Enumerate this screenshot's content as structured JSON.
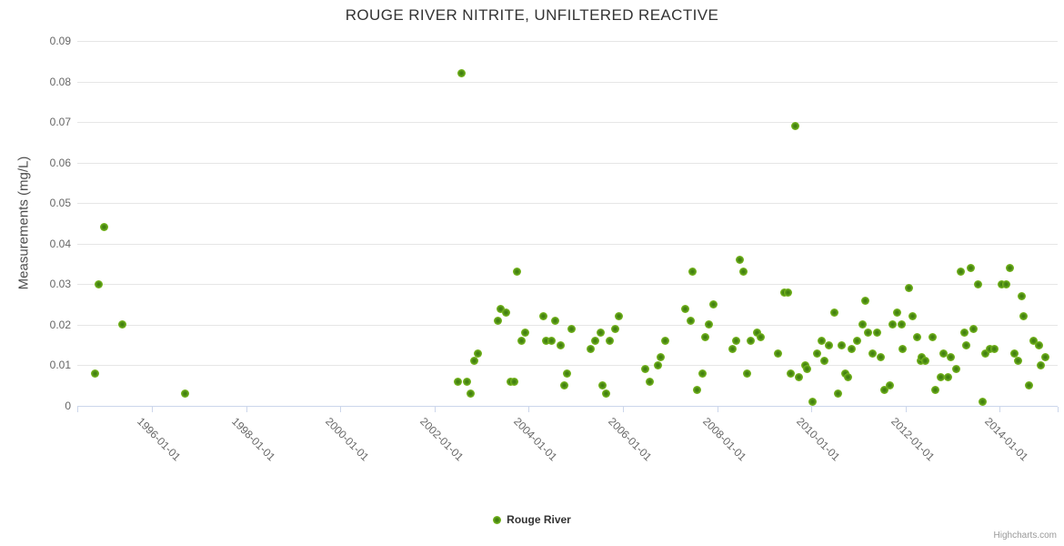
{
  "title": "ROUGE RIVER NITRITE, UNFILTERED REACTIVE",
  "legend": {
    "items": [
      {
        "label": "Rouge River",
        "color": "#79b81e"
      }
    ]
  },
  "credits": "Highcharts.com",
  "colors": {
    "background": "#ffffff",
    "title_text": "#333333",
    "axis_title_text": "#4d4d4d",
    "tick_label_text": "#666666",
    "gridline": "#e6e6e6",
    "axis_line": "#ccd6eb",
    "point_outer": "#79b81e",
    "point_inner": "#3d7a0c",
    "legend_text": "#333333",
    "credits_text": "#999999"
  },
  "chart_data": {
    "type": "scatter",
    "title": "ROUGE RIVER NITRITE, UNFILTERED REACTIVE",
    "xlabel": "",
    "ylabel": "Measurements (mg/L)",
    "ylim": [
      0,
      0.09
    ],
    "grid": true,
    "legend_position": "bottom-center",
    "y_ticks": [
      {
        "value": 0.0,
        "label": "0"
      },
      {
        "value": 0.01,
        "label": "0.01"
      },
      {
        "value": 0.02,
        "label": "0.02"
      },
      {
        "value": 0.03,
        "label": "0.03"
      },
      {
        "value": 0.04,
        "label": "0.04"
      },
      {
        "value": 0.05,
        "label": "0.05"
      },
      {
        "value": 0.06,
        "label": "0.06"
      },
      {
        "value": 0.07,
        "label": "0.07"
      },
      {
        "value": 0.08,
        "label": "0.08"
      },
      {
        "value": 0.09,
        "label": "0.09"
      }
    ],
    "x_ticks": [
      {
        "year": 1996,
        "label": "1996-01-01"
      },
      {
        "year": 1998,
        "label": "1998-01-01"
      },
      {
        "year": 2000,
        "label": "2000-01-01"
      },
      {
        "year": 2002,
        "label": "2002-01-01"
      },
      {
        "year": 2004,
        "label": "2004-01-01"
      },
      {
        "year": 2006,
        "label": "2006-01-01"
      },
      {
        "year": 2008,
        "label": "2008-01-01"
      },
      {
        "year": 2010,
        "label": "2010-01-01"
      },
      {
        "year": 2012,
        "label": "2012-01-01"
      },
      {
        "year": 2014,
        "label": "2014-01-01"
      }
    ],
    "xlim": [
      1994.42,
      2015.25
    ],
    "series": [
      {
        "name": "Rouge River",
        "color": "#79b81e",
        "points": [
          [
            1994.8,
            0.008
          ],
          [
            1994.87,
            0.03
          ],
          [
            1994.98,
            0.044
          ],
          [
            1995.38,
            0.02
          ],
          [
            1996.71,
            0.003
          ],
          [
            2002.49,
            0.006
          ],
          [
            2002.57,
            0.082
          ],
          [
            2002.68,
            0.006
          ],
          [
            2002.76,
            0.003
          ],
          [
            2002.85,
            0.011
          ],
          [
            2002.92,
            0.013
          ],
          [
            2003.34,
            0.021
          ],
          [
            2003.41,
            0.024
          ],
          [
            2003.52,
            0.023
          ],
          [
            2003.61,
            0.006
          ],
          [
            2003.69,
            0.006
          ],
          [
            2003.76,
            0.033
          ],
          [
            2003.85,
            0.016
          ],
          [
            2003.92,
            0.018
          ],
          [
            2004.32,
            0.022
          ],
          [
            2004.37,
            0.016
          ],
          [
            2004.48,
            0.016
          ],
          [
            2004.57,
            0.021
          ],
          [
            2004.67,
            0.015
          ],
          [
            2004.75,
            0.005
          ],
          [
            2004.82,
            0.008
          ],
          [
            2004.91,
            0.019
          ],
          [
            2005.32,
            0.014
          ],
          [
            2005.42,
            0.016
          ],
          [
            2005.52,
            0.018
          ],
          [
            2005.57,
            0.005
          ],
          [
            2005.65,
            0.003
          ],
          [
            2005.72,
            0.016
          ],
          [
            2005.83,
            0.019
          ],
          [
            2005.92,
            0.022
          ],
          [
            2006.48,
            0.009
          ],
          [
            2006.56,
            0.006
          ],
          [
            2006.74,
            0.01
          ],
          [
            2006.81,
            0.012
          ],
          [
            2006.9,
            0.016
          ],
          [
            2007.32,
            0.024
          ],
          [
            2007.43,
            0.021
          ],
          [
            2007.47,
            0.033
          ],
          [
            2007.58,
            0.004
          ],
          [
            2007.68,
            0.008
          ],
          [
            2007.75,
            0.017
          ],
          [
            2007.83,
            0.02
          ],
          [
            2007.92,
            0.025
          ],
          [
            2008.33,
            0.014
          ],
          [
            2008.41,
            0.016
          ],
          [
            2008.48,
            0.036
          ],
          [
            2008.56,
            0.033
          ],
          [
            2008.64,
            0.008
          ],
          [
            2008.71,
            0.016
          ],
          [
            2008.84,
            0.018
          ],
          [
            2008.92,
            0.017
          ],
          [
            2009.3,
            0.013
          ],
          [
            2009.43,
            0.028
          ],
          [
            2009.5,
            0.028
          ],
          [
            2009.57,
            0.008
          ],
          [
            2009.65,
            0.069
          ],
          [
            2009.73,
            0.007
          ],
          [
            2009.88,
            0.01
          ],
          [
            2009.91,
            0.009
          ],
          [
            2010.03,
            0.001
          ],
          [
            2010.13,
            0.013
          ],
          [
            2010.21,
            0.016
          ],
          [
            2010.27,
            0.011
          ],
          [
            2010.38,
            0.015
          ],
          [
            2010.49,
            0.023
          ],
          [
            2010.56,
            0.003
          ],
          [
            2010.64,
            0.015
          ],
          [
            2010.72,
            0.008
          ],
          [
            2010.78,
            0.007
          ],
          [
            2010.86,
            0.014
          ],
          [
            2010.97,
            0.016
          ],
          [
            2011.08,
            0.02
          ],
          [
            2011.15,
            0.026
          ],
          [
            2011.21,
            0.018
          ],
          [
            2011.3,
            0.013
          ],
          [
            2011.39,
            0.018
          ],
          [
            2011.47,
            0.012
          ],
          [
            2011.55,
            0.004
          ],
          [
            2011.66,
            0.005
          ],
          [
            2011.73,
            0.02
          ],
          [
            2011.82,
            0.023
          ],
          [
            2011.91,
            0.02
          ],
          [
            2011.94,
            0.014
          ],
          [
            2012.08,
            0.029
          ],
          [
            2012.15,
            0.022
          ],
          [
            2012.24,
            0.017
          ],
          [
            2012.32,
            0.011
          ],
          [
            2012.35,
            0.012
          ],
          [
            2012.42,
            0.011
          ],
          [
            2012.57,
            0.017
          ],
          [
            2012.64,
            0.004
          ],
          [
            2012.74,
            0.007
          ],
          [
            2012.8,
            0.013
          ],
          [
            2012.9,
            0.007
          ],
          [
            2012.95,
            0.012
          ],
          [
            2013.07,
            0.009
          ],
          [
            2013.17,
            0.033
          ],
          [
            2013.25,
            0.018
          ],
          [
            2013.29,
            0.015
          ],
          [
            2013.39,
            0.034
          ],
          [
            2013.45,
            0.019
          ],
          [
            2013.53,
            0.03
          ],
          [
            2013.63,
            0.001
          ],
          [
            2013.7,
            0.013
          ],
          [
            2013.78,
            0.014
          ],
          [
            2013.88,
            0.014
          ],
          [
            2014.04,
            0.03
          ],
          [
            2014.13,
            0.03
          ],
          [
            2014.22,
            0.034
          ],
          [
            2014.31,
            0.013
          ],
          [
            2014.38,
            0.011
          ],
          [
            2014.46,
            0.027
          ],
          [
            2014.51,
            0.022
          ],
          [
            2014.62,
            0.005
          ],
          [
            2014.71,
            0.016
          ],
          [
            2014.83,
            0.015
          ],
          [
            2014.87,
            0.01
          ],
          [
            2014.96,
            0.012
          ]
        ]
      }
    ],
    "credits": "Highcharts.com"
  }
}
